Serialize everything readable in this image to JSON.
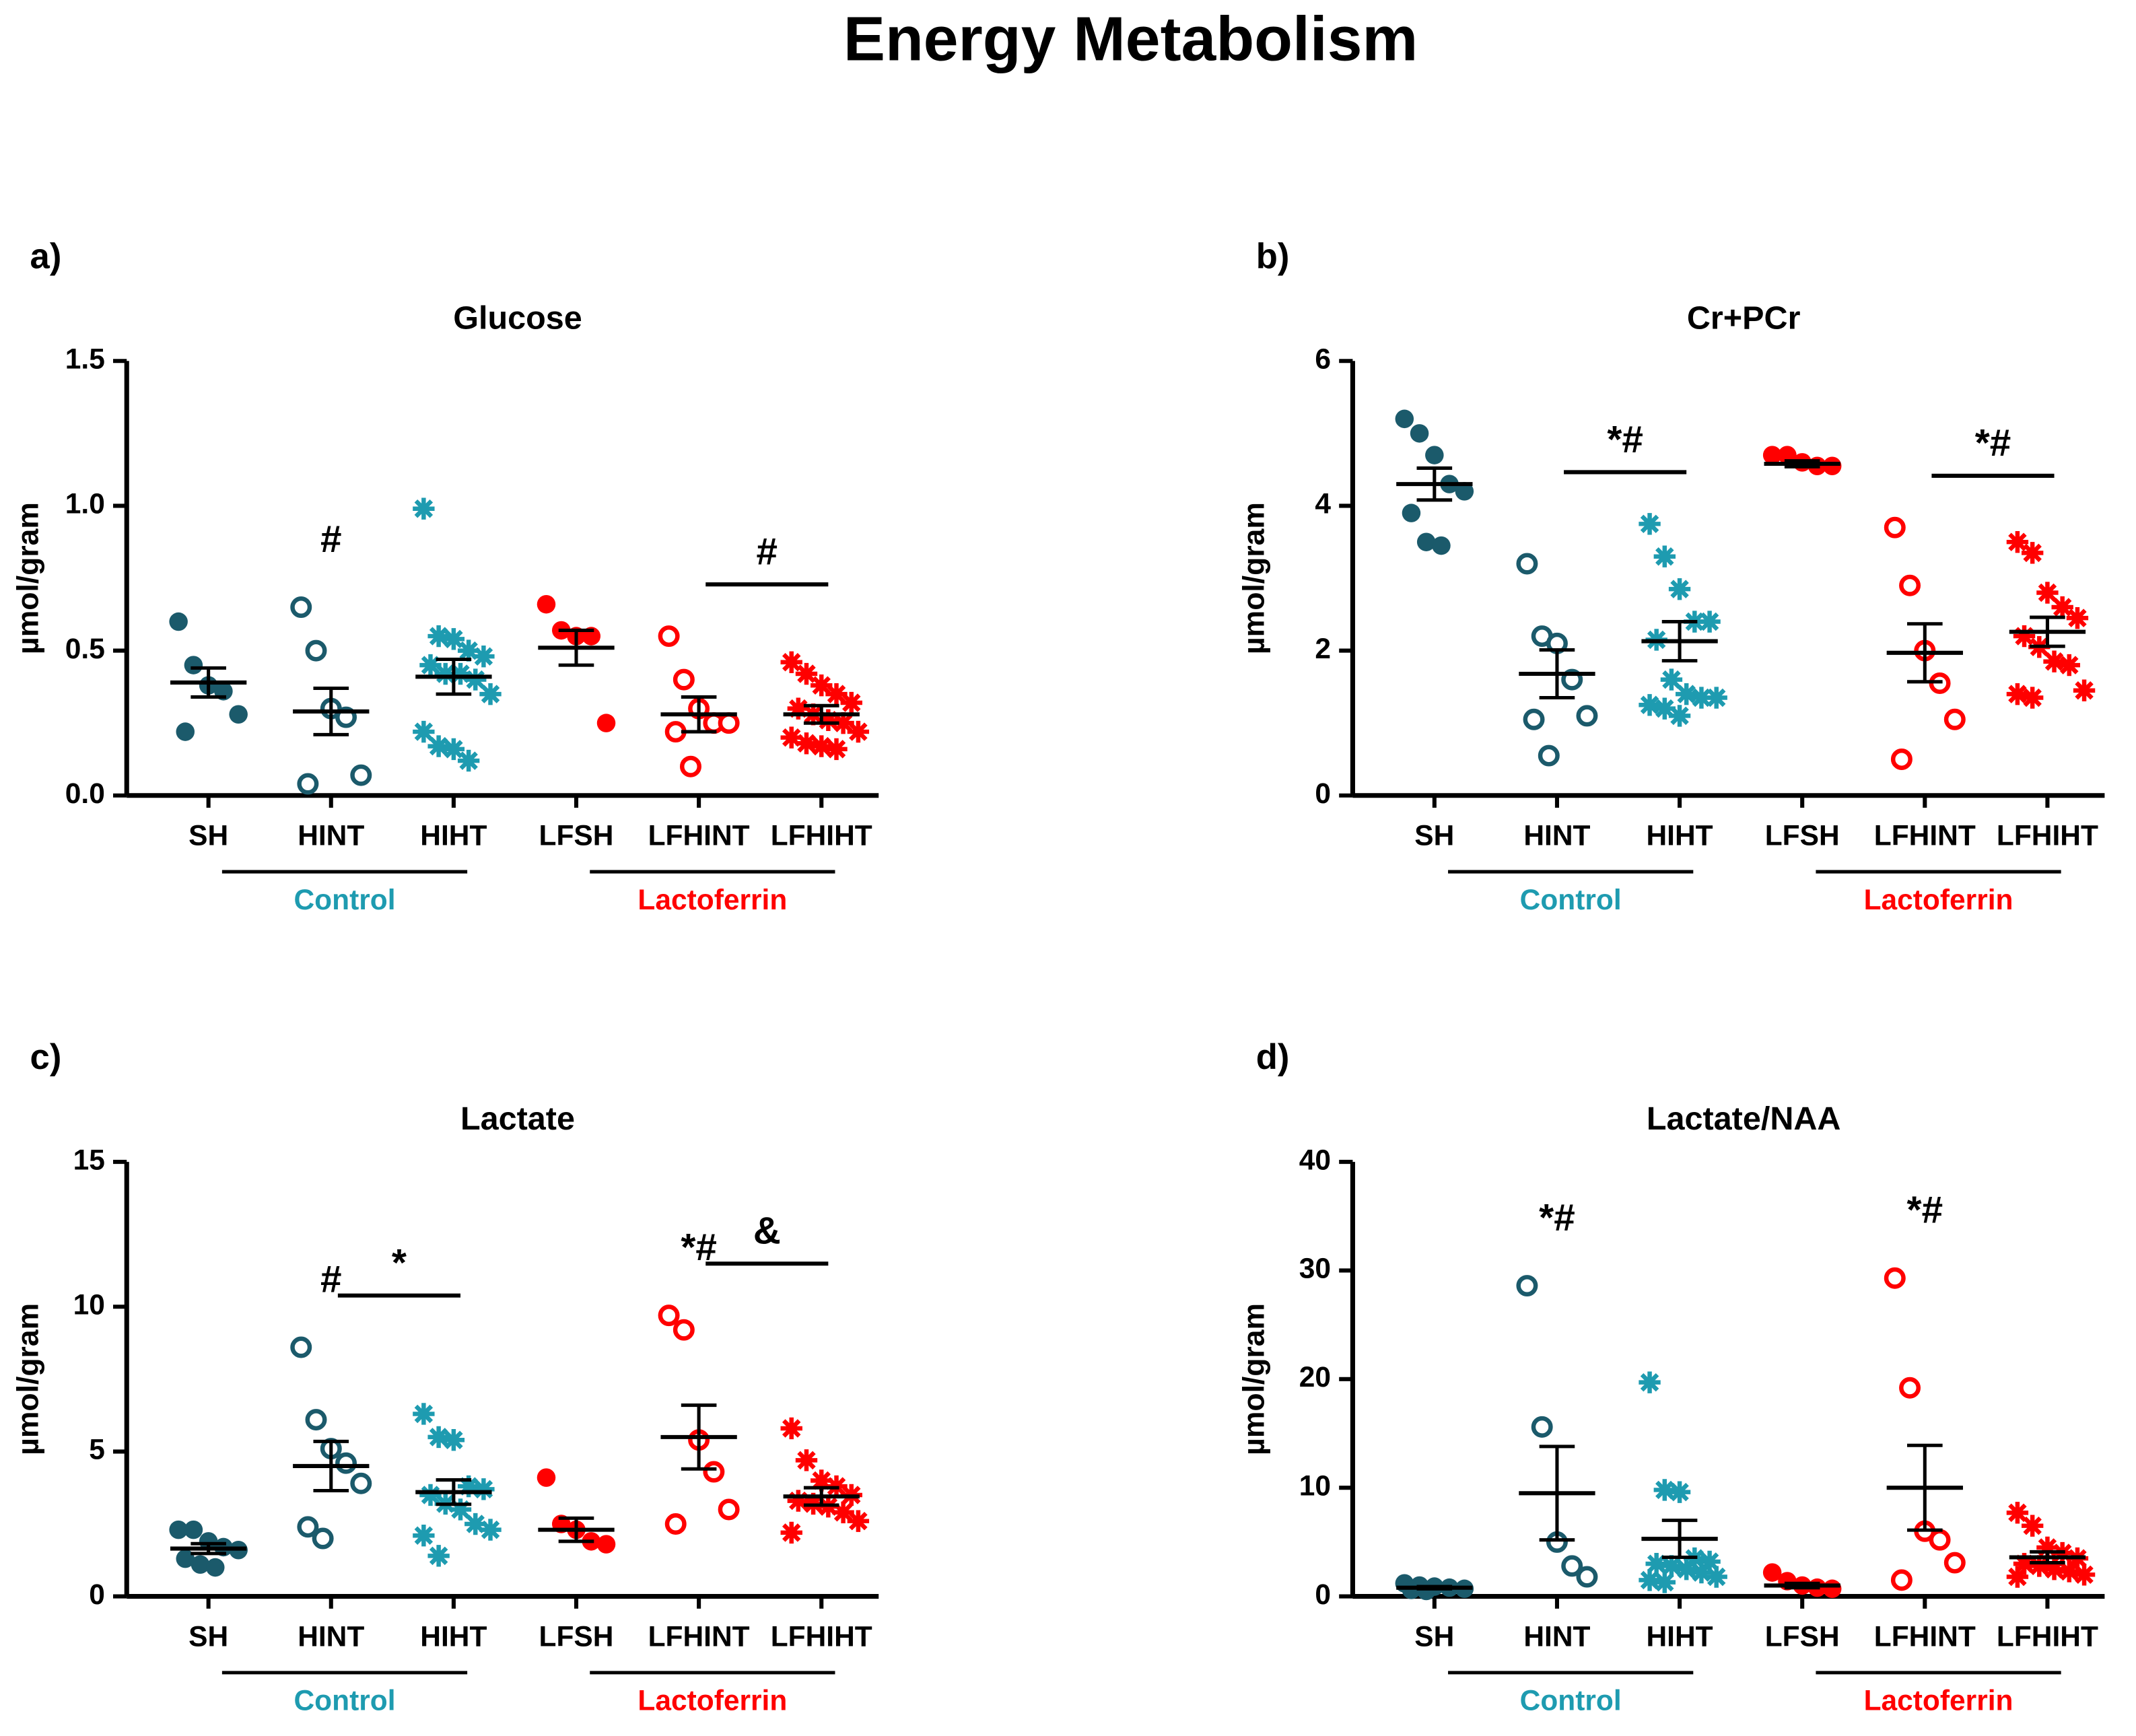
{
  "title": "Energy Metabolism",
  "chart_data": [
    {
      "type": "dot",
      "panel": "a)",
      "title": "Glucose",
      "y_label": "µmol/gram",
      "ylim": [
        0,
        1.5
      ],
      "yticks": [
        {
          "value": 0,
          "label": "0.0"
        },
        0.5,
        {
          "value": 1,
          "label": "1.0"
        },
        1.5
      ],
      "series": [
        {
          "name": "SH",
          "color": "#1b5a6b",
          "marker": "filled",
          "values": [
            0.6,
            0.45,
            0.38,
            0.36,
            0.28,
            0.22
          ],
          "mean": 0.39,
          "sem": 0.05
        },
        {
          "name": "HINT",
          "color": "#1b5a6b",
          "marker": "open",
          "values": [
            0.65,
            0.5,
            0.3,
            0.27,
            0.07,
            0.04
          ],
          "mean": 0.29,
          "sem": 0.08
        },
        {
          "name": "HIHT",
          "color": "#1e9bb0",
          "marker": "star",
          "values": [
            0.99,
            0.55,
            0.54,
            0.5,
            0.48,
            0.45,
            0.42,
            0.42,
            0.4,
            0.35,
            0.22,
            0.17,
            0.16,
            0.12
          ],
          "mean": 0.41,
          "sem": 0.06
        },
        {
          "name": "LFSH",
          "color": "#ff0000",
          "marker": "filled",
          "values": [
            0.66,
            0.57,
            0.55,
            0.55,
            0.25
          ],
          "mean": 0.51,
          "sem": 0.06
        },
        {
          "name": "LFHINT",
          "color": "#ff0000",
          "marker": "open",
          "values": [
            0.55,
            0.4,
            0.3,
            0.25,
            0.25,
            0.22,
            0.1
          ],
          "mean": 0.28,
          "sem": 0.06
        },
        {
          "name": "LFHIHT",
          "color": "#ff0000",
          "marker": "star",
          "values": [
            0.46,
            0.42,
            0.38,
            0.35,
            0.32,
            0.3,
            0.28,
            0.26,
            0.25,
            0.22,
            0.2,
            0.18,
            0.17,
            0.16
          ],
          "mean": 0.28,
          "sem": 0.03
        }
      ],
      "groups": [
        {
          "name": "Control",
          "color": "#1e9bb0",
          "series": [
            0,
            1,
            2
          ]
        },
        {
          "name": "Lactoferrin",
          "color": "#ff0000",
          "series": [
            3,
            4,
            5
          ]
        }
      ],
      "annotations": [
        {
          "label": "#",
          "series": [
            1
          ]
        },
        {
          "label": "#",
          "series": [
            4,
            5
          ]
        }
      ]
    },
    {
      "type": "dot",
      "panel": "b)",
      "title": "Cr+PCr",
      "y_label": "µmol/gram",
      "ylim": [
        0,
        6
      ],
      "yticks": [
        0,
        2,
        4,
        6
      ],
      "series": [
        {
          "name": "SH",
          "color": "#1b5a6b",
          "marker": "filled",
          "values": [
            5.2,
            5.0,
            4.7,
            4.3,
            4.2,
            3.9,
            3.5,
            3.45
          ],
          "mean": 4.3,
          "sem": 0.22
        },
        {
          "name": "HINT",
          "color": "#1b5a6b",
          "marker": "open",
          "values": [
            3.2,
            2.2,
            2.1,
            1.6,
            1.1,
            1.05,
            0.55
          ],
          "mean": 1.68,
          "sem": 0.33
        },
        {
          "name": "HIHT",
          "color": "#1e9bb0",
          "marker": "star",
          "values": [
            3.75,
            3.3,
            2.85,
            2.4,
            2.4,
            2.15,
            1.6,
            1.4,
            1.35,
            1.35,
            1.25,
            1.2,
            1.1
          ],
          "mean": 2.13,
          "sem": 0.27
        },
        {
          "name": "LFSH",
          "color": "#ff0000",
          "marker": "filled",
          "values": [
            4.7,
            4.7,
            4.6,
            4.55,
            4.55
          ],
          "mean": 4.58,
          "sem": 0.04
        },
        {
          "name": "LFHINT",
          "color": "#ff0000",
          "marker": "open",
          "values": [
            3.7,
            2.9,
            2.0,
            1.55,
            1.05,
            0.5
          ],
          "mean": 1.97,
          "sem": 0.4
        },
        {
          "name": "LFHIHT",
          "color": "#ff0000",
          "marker": "star",
          "values": [
            3.5,
            3.35,
            2.8,
            2.6,
            2.45,
            2.2,
            2.05,
            1.85,
            1.8,
            1.45,
            1.4,
            1.35
          ],
          "mean": 2.26,
          "sem": 0.2
        }
      ],
      "groups": [
        {
          "name": "Control",
          "color": "#1e9bb0",
          "series": [
            0,
            1,
            2
          ]
        },
        {
          "name": "Lactoferrin",
          "color": "#ff0000",
          "series": [
            3,
            4,
            5
          ]
        }
      ],
      "annotations": [
        {
          "label": "*#",
          "series": [
            1,
            2
          ]
        },
        {
          "label": "*#",
          "series": [
            4,
            5
          ]
        }
      ]
    },
    {
      "type": "dot",
      "panel": "c)",
      "title": "Lactate",
      "y_label": "µmol/gram",
      "ylim": [
        0,
        15
      ],
      "yticks": [
        0,
        5,
        10,
        15
      ],
      "series": [
        {
          "name": "SH",
          "color": "#1b5a6b",
          "marker": "filled",
          "values": [
            2.3,
            2.3,
            1.9,
            1.7,
            1.6,
            1.3,
            1.1,
            1.0
          ],
          "mean": 1.65,
          "sem": 0.17
        },
        {
          "name": "HINT",
          "color": "#1b5a6b",
          "marker": "open",
          "values": [
            8.6,
            6.1,
            5.1,
            4.6,
            3.9,
            2.4,
            2.0
          ],
          "mean": 4.5,
          "sem": 0.85
        },
        {
          "name": "HIHT",
          "color": "#1e9bb0",
          "marker": "star",
          "values": [
            6.3,
            5.5,
            5.4,
            3.8,
            3.7,
            3.5,
            3.2,
            3.0,
            2.5,
            2.3,
            2.1,
            1.4
          ],
          "mean": 3.6,
          "sem": 0.42
        },
        {
          "name": "LFSH",
          "color": "#ff0000",
          "marker": "filled",
          "values": [
            4.1,
            2.5,
            2.3,
            1.9,
            1.8
          ],
          "mean": 2.3,
          "sem": 0.4
        },
        {
          "name": "LFHINT",
          "color": "#ff0000",
          "marker": "open",
          "values": [
            9.7,
            9.2,
            5.4,
            4.3,
            3.0,
            2.5
          ],
          "mean": 5.5,
          "sem": 1.1
        },
        {
          "name": "LFHIHT",
          "color": "#ff0000",
          "marker": "star",
          "values": [
            5.8,
            4.7,
            4.0,
            3.8,
            3.5,
            3.3,
            3.2,
            3.1,
            2.9,
            2.6,
            2.2
          ],
          "mean": 3.45,
          "sem": 0.3
        }
      ],
      "groups": [
        {
          "name": "Control",
          "color": "#1e9bb0",
          "series": [
            0,
            1,
            2
          ]
        },
        {
          "name": "Lactoferrin",
          "color": "#ff0000",
          "series": [
            3,
            4,
            5
          ]
        }
      ],
      "annotations": [
        {
          "label": "#",
          "series": [
            1
          ]
        },
        {
          "label": "*",
          "series": [
            1,
            2
          ]
        },
        {
          "label": "*#",
          "series": [
            4
          ]
        },
        {
          "label": "&",
          "series": [
            4,
            5
          ]
        }
      ]
    },
    {
      "type": "dot",
      "panel": "d)",
      "title": "Lactate/NAA",
      "y_label": "µmol/gram",
      "ylim": [
        0,
        40
      ],
      "yticks": [
        0,
        10,
        20,
        30,
        40
      ],
      "series": [
        {
          "name": "SH",
          "color": "#1b5a6b",
          "marker": "filled",
          "values": [
            1.2,
            1.0,
            0.9,
            0.8,
            0.7,
            0.6,
            0.5
          ],
          "mean": 0.8,
          "sem": 0.1
        },
        {
          "name": "HINT",
          "color": "#1b5a6b",
          "marker": "open",
          "values": [
            28.6,
            15.6,
            5.0,
            2.8,
            1.8
          ],
          "mean": 9.5,
          "sem": 4.3
        },
        {
          "name": "HIHT",
          "color": "#1e9bb0",
          "marker": "star",
          "values": [
            19.7,
            9.8,
            9.6,
            3.5,
            3.2,
            3.0,
            2.8,
            2.5,
            2.2,
            1.8,
            1.5,
            1.3
          ],
          "mean": 5.3,
          "sem": 1.7
        },
        {
          "name": "LFSH",
          "color": "#ff0000",
          "marker": "filled",
          "values": [
            2.2,
            1.4,
            1.0,
            0.8,
            0.7
          ],
          "mean": 1.0,
          "sem": 0.2
        },
        {
          "name": "LFHINT",
          "color": "#ff0000",
          "marker": "open",
          "values": [
            29.3,
            19.2,
            6.0,
            5.2,
            3.1,
            1.5
          ],
          "mean": 10.0,
          "sem": 3.9
        },
        {
          "name": "LFHIHT",
          "color": "#ff0000",
          "marker": "star",
          "values": [
            7.7,
            6.5,
            4.5,
            4.0,
            3.5,
            3.0,
            2.8,
            2.5,
            2.3,
            2.0,
            1.8
          ],
          "mean": 3.6,
          "sem": 0.5
        }
      ],
      "groups": [
        {
          "name": "Control",
          "color": "#1e9bb0",
          "series": [
            0,
            1,
            2
          ]
        },
        {
          "name": "Lactoferrin",
          "color": "#ff0000",
          "series": [
            3,
            4,
            5
          ]
        }
      ],
      "annotations": [
        {
          "label": "*#",
          "series": [
            1
          ]
        },
        {
          "label": "*#",
          "series": [
            4
          ]
        }
      ]
    }
  ]
}
